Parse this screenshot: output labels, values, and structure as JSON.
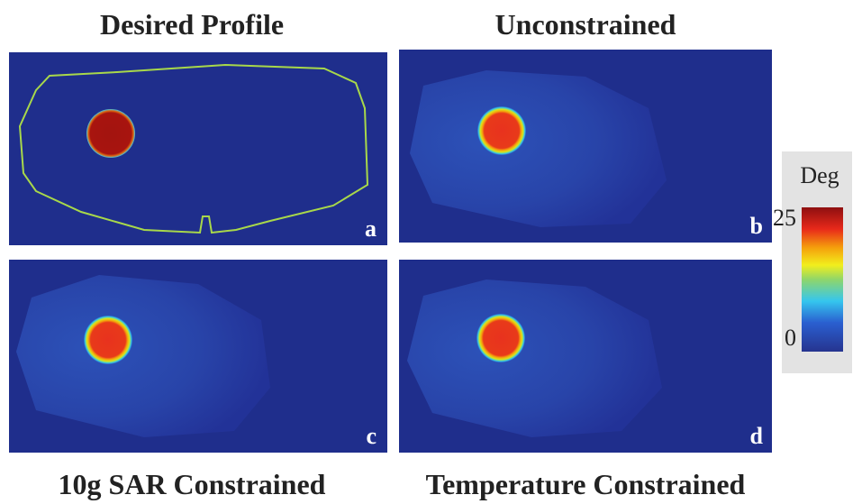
{
  "panels": [
    {
      "title": "Desired Profile",
      "letter": "a"
    },
    {
      "title": "Unconstrained",
      "letter": "b"
    },
    {
      "title": "10g SAR Constrained",
      "letter": "c"
    },
    {
      "title": "Temperature Constrained",
      "letter": "d"
    }
  ],
  "colorbar": {
    "label": "Deg",
    "max": 25,
    "min": 0
  }
}
